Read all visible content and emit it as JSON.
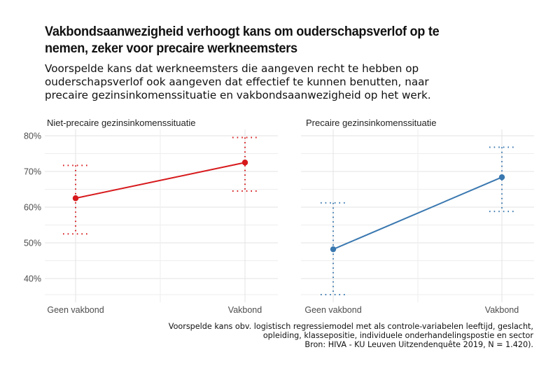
{
  "title": "Vakbondsaanwezigheid verhoogt kans om ouderschapsverlof op te nemen, zeker voor precaire werkneemsters",
  "title_lines": [
    "Vakbondsaanwezigheid verhoogt kans om ouderschapsverlof op te",
    "nemen, zeker voor precaire werkneemsters"
  ],
  "subtitle_lines": [
    "Voorspelde kans dat werkneemsters die aangeven recht te hebben op",
    "ouderschapsverlof ook aangeven dat effectief te kunnen benutten, naar",
    "precaire gezinsinkomenssituatie en vakbondsaanwezigheid op het werk."
  ],
  "caption_lines": [
    "Voorspelde kans obv. logistisch regressiemodel met als controle-variabelen leeftijd, geslacht,",
    "opleiding, klassepositie, individuele onderhandelingspostie en sector",
    "Bron: HIVA - KU Leuven Uitzendenquête 2019, N = 1.420)."
  ],
  "colors": {
    "series_non_precarious": "#d7191c",
    "series_precarious": "#3a78b0",
    "gridline": "#e6e6e6",
    "text": "#111111",
    "axis_text": "#4d4d4d"
  },
  "chart_data": [
    {
      "type": "line",
      "facet": "Niet-precaire gezinsinkomenssituatie",
      "categories": [
        "Geen vakbond",
        "Vakbond"
      ],
      "values": [
        62.5,
        72.5
      ],
      "ci_lower": [
        52.5,
        64.5
      ],
      "ci_upper": [
        71.7,
        79.5
      ],
      "color": "#d7191c",
      "ylabel": "",
      "xlabel": "",
      "ylim": [
        35.5,
        82
      ],
      "yticks": [
        "40%",
        "50%",
        "60%",
        "70%",
        "80%"
      ],
      "grid": true,
      "errorbar_style": "dotted"
    },
    {
      "type": "line",
      "facet": "Precaire gezinsinkomenssituatie",
      "categories": [
        "Geen vakbond",
        "Vakbond"
      ],
      "values": [
        48.2,
        68.4
      ],
      "ci_lower": [
        35.5,
        58.8
      ],
      "ci_upper": [
        61.2,
        76.8
      ],
      "color": "#3a78b0",
      "ylabel": "",
      "xlabel": "",
      "ylim": [
        35.5,
        82
      ],
      "yticks": [
        "40%",
        "50%",
        "60%",
        "70%",
        "80%"
      ],
      "grid": true,
      "errorbar_style": "dotted"
    }
  ],
  "axis": {
    "y_ticks": [
      {
        "value": 80,
        "label": "80%"
      },
      {
        "value": 70,
        "label": "70%"
      },
      {
        "value": 60,
        "label": "60%"
      },
      {
        "value": 50,
        "label": "50%"
      },
      {
        "value": 40,
        "label": "40%"
      }
    ],
    "x_labels": [
      "Geen vakbond",
      "Vakbond"
    ]
  }
}
